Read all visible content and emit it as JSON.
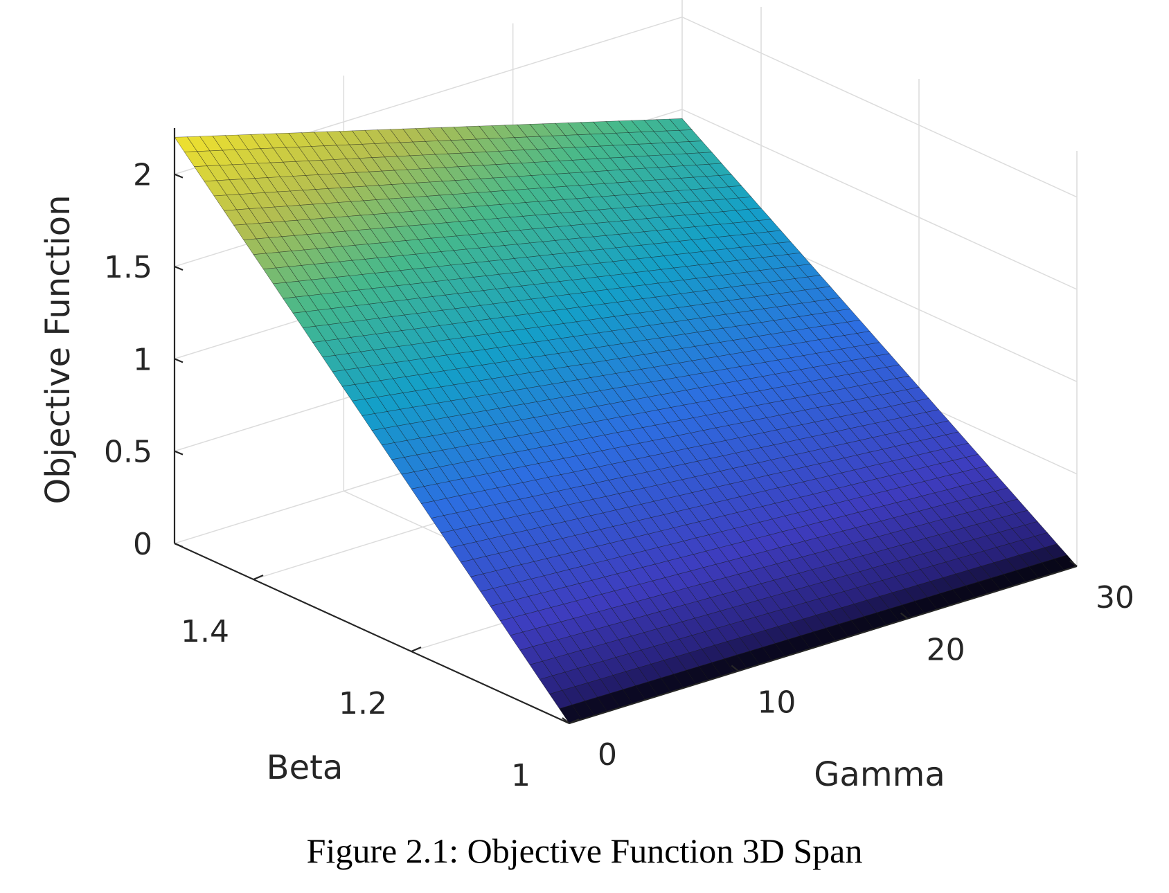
{
  "caption": "Figure 2.1: Objective Function 3D Span",
  "chart_data": {
    "type": "surface",
    "zlabel": "Objective Function",
    "xlabel": "Gamma",
    "ylabel": "Beta",
    "xlim": [
      0,
      30
    ],
    "ylim": [
      1,
      1.5
    ],
    "zlim": [
      0,
      2.25
    ],
    "xticks": [
      0,
      10,
      20,
      30
    ],
    "yticks": [
      1,
      1.2,
      1.4
    ],
    "zticks": [
      0,
      0.5,
      1,
      1.5,
      2
    ],
    "xtick_labels": [
      "0",
      "10",
      "20",
      "30"
    ],
    "ytick_labels": [
      "1",
      "1.2",
      "1.4"
    ],
    "ztick_labels": [
      "0",
      "0.5",
      "1",
      "1.5",
      "2"
    ],
    "grid": true,
    "colormap": "parula",
    "surface_corners": {
      "gamma0_beta1": 0.0,
      "gamma0_beta1.5": 2.2,
      "gamma30_beta1.5": 1.45,
      "gamma30_beta1": 0.0
    }
  }
}
